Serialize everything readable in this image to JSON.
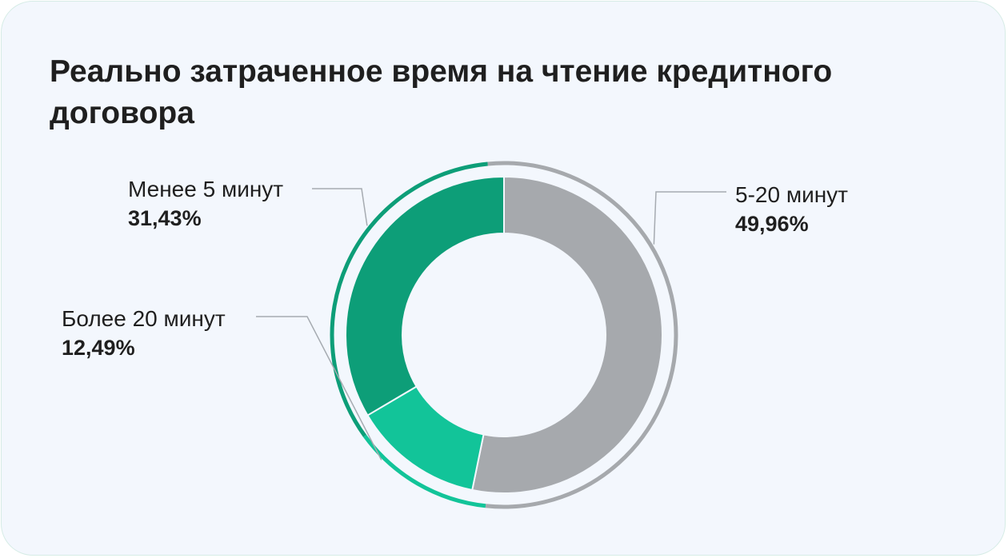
{
  "title": "Реально затраченное время на чтение кредитного договора",
  "colors": {
    "card_background": "#f3f7fd",
    "title_text": "#1f1f1f",
    "leader_line": "#a6abb1"
  },
  "chart_data": {
    "type": "pie",
    "variant": "donut",
    "title": "Реально затраченное время на чтение кредитного договора",
    "start": "12 o'clock, clockwise",
    "series": [
      {
        "name": "5-20 минут",
        "value": 49.96,
        "label": "49,96%",
        "color": "#a6a9ad"
      },
      {
        "name": "Более 20 минут",
        "value": 12.49,
        "label": "12,49%",
        "color": "#12c499"
      },
      {
        "name": "Менее 5 минут",
        "value": 31.43,
        "label": "31,43%",
        "color": "#0d9e78"
      }
    ],
    "legend": "none (labels beside slices)"
  }
}
